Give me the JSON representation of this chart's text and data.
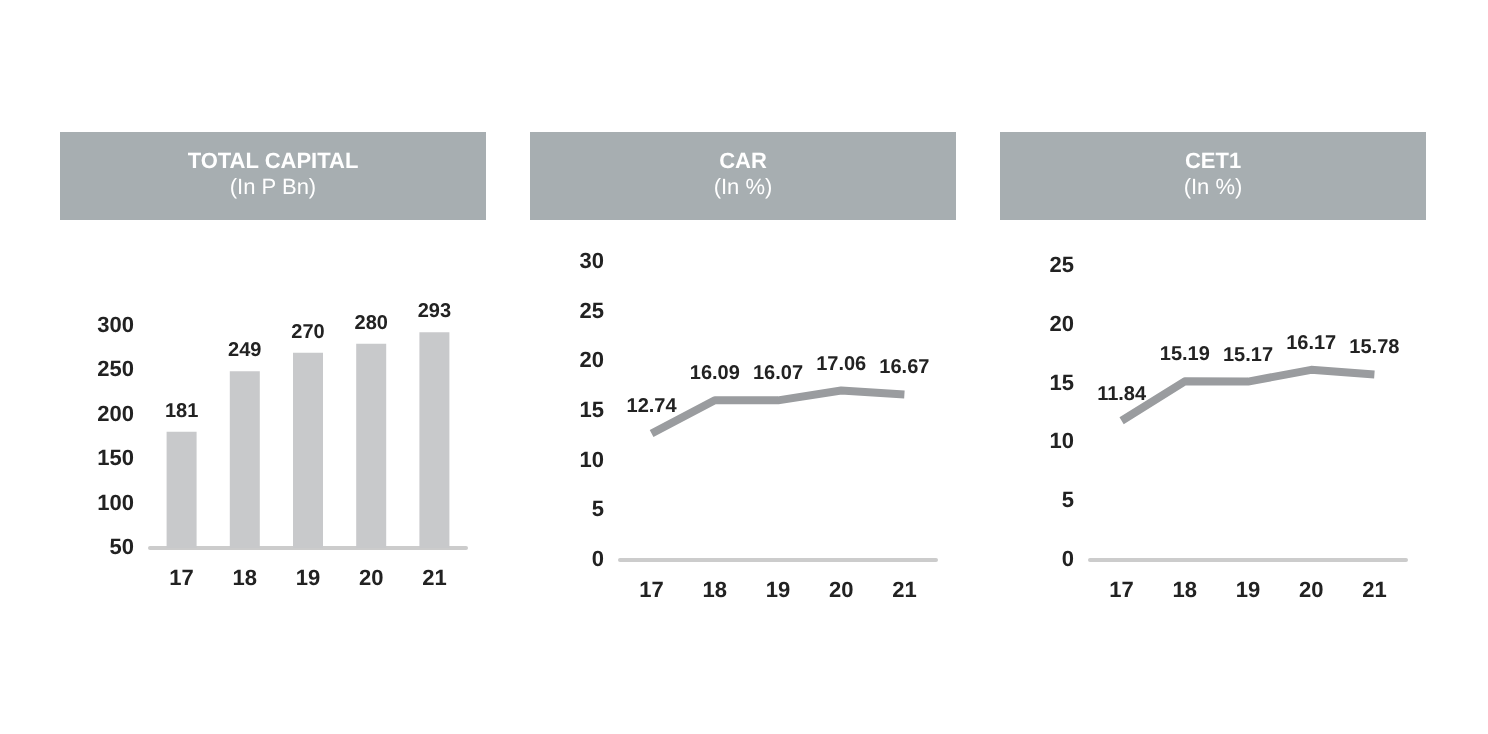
{
  "chart_data": [
    {
      "type": "bar",
      "title": "TOTAL CAPITAL",
      "subtitle": "(In P Bn)",
      "categories": [
        "17",
        "18",
        "19",
        "20",
        "21"
      ],
      "values": [
        181,
        249,
        270,
        280,
        293
      ],
      "color": "#c8c9cb",
      "ylim": [
        50,
        300
      ],
      "yticks": [
        50,
        100,
        150,
        200,
        250,
        300
      ],
      "grid": false,
      "data_labels": true
    },
    {
      "type": "line",
      "title": "CAR",
      "subtitle": "(In %)",
      "categories": [
        "17",
        "18",
        "19",
        "20",
        "21"
      ],
      "values": [
        12.74,
        16.09,
        16.07,
        17.06,
        16.67
      ],
      "color": "#9a9c9f",
      "ylim": [
        0,
        30
      ],
      "yticks": [
        0,
        5,
        10,
        15,
        20,
        25,
        30
      ],
      "grid": false,
      "data_labels": true,
      "marker": "none"
    },
    {
      "type": "line",
      "title": "CET1",
      "subtitle": "(In %)",
      "categories": [
        "17",
        "18",
        "19",
        "20",
        "21"
      ],
      "values": [
        11.84,
        15.19,
        15.17,
        16.17,
        15.78
      ],
      "color": "#9a9c9f",
      "ylim": [
        0,
        25
      ],
      "yticks": [
        0,
        5,
        10,
        15,
        20,
        25
      ],
      "grid": false,
      "data_labels": true,
      "marker": "none"
    }
  ]
}
